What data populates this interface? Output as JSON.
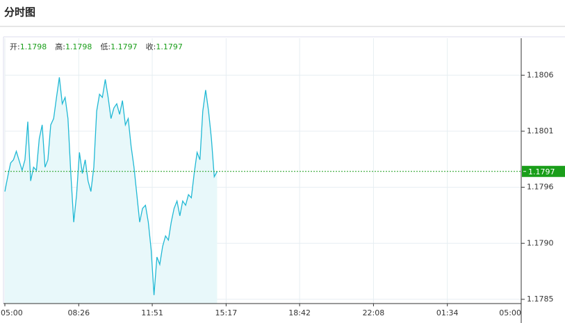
{
  "title": "分时图",
  "chart_data": {
    "type": "line",
    "ohlc": [
      {
        "label": "开:",
        "value": 1.1798
      },
      {
        "label": "高:",
        "value": 1.1798
      },
      {
        "label": "低:",
        "value": 1.1797
      },
      {
        "label": "收:",
        "value": 1.1797
      }
    ],
    "price_line": 1.1797,
    "color": "#1fb8d4",
    "fill_color": "#e8f8fa",
    "up_color": "#1a9e1a",
    "grid": true,
    "xlim": [
      0,
      1440
    ],
    "xticks": [
      {
        "value": 0,
        "label": "05:00"
      },
      {
        "value": 206,
        "label": "08:26"
      },
      {
        "value": 411,
        "label": "11:51"
      },
      {
        "value": 617,
        "label": "15:17"
      },
      {
        "value": 822,
        "label": "18:42"
      },
      {
        "value": 1028,
        "label": "22:08"
      },
      {
        "value": 1234,
        "label": "01:34"
      },
      {
        "value": 1440,
        "label": "05:00"
      }
    ],
    "ylim": [
      1.17845,
      1.18096
    ],
    "yticks": [
      {
        "value": 1.17849,
        "label": "1.1785"
      },
      {
        "value": 1.17902,
        "label": "1.1790"
      },
      {
        "value": 1.17955,
        "label": "1.1796"
      },
      {
        "value": 1.18008,
        "label": "1.1801"
      },
      {
        "value": 1.18061,
        "label": "1.1806"
      }
    ],
    "x": [
      0,
      8,
      16,
      24,
      32,
      40,
      48,
      56,
      64,
      72,
      80,
      88,
      96,
      104,
      112,
      120,
      128,
      136,
      144,
      152,
      160,
      168,
      176,
      184,
      192,
      200,
      208,
      216,
      224,
      232,
      240,
      248,
      256,
      264,
      272,
      280,
      288,
      296,
      304,
      312,
      320,
      328,
      336,
      344,
      352,
      360,
      368,
      376,
      384,
      392,
      400,
      408,
      416,
      424,
      432,
      440,
      448,
      456,
      464,
      472,
      480,
      488,
      496,
      504,
      512,
      520,
      528,
      536,
      544,
      552,
      560,
      568,
      576,
      584,
      592
    ],
    "values": [
      1.17951,
      1.17965,
      1.17978,
      1.17981,
      1.17989,
      1.1798,
      1.17971,
      1.17981,
      1.18017,
      1.17961,
      1.17974,
      1.17971,
      1.18001,
      1.18014,
      1.17974,
      1.17981,
      1.18014,
      1.1802,
      1.1804,
      1.18059,
      1.18034,
      1.1804,
      1.1802,
      1.17968,
      1.17922,
      1.17948,
      1.17988,
      1.17968,
      1.17981,
      1.17961,
      1.17951,
      1.17974,
      1.18027,
      1.18043,
      1.1804,
      1.18057,
      1.1804,
      1.1802,
      1.1803,
      1.18034,
      1.18024,
      1.18037,
      1.18014,
      1.1802,
      1.17994,
      1.17974,
      1.17948,
      1.17922,
      1.17935,
      1.17938,
      1.17922,
      1.17896,
      1.17853,
      1.17889,
      1.17882,
      1.17899,
      1.17909,
      1.17905,
      1.17922,
      1.17935,
      1.17942,
      1.17928,
      1.17942,
      1.17938,
      1.17948,
      1.17945,
      1.17968,
      1.17988,
      1.17981,
      1.18027,
      1.18047,
      1.18027,
      1.18001,
      1.17965,
      1.1797
    ]
  }
}
